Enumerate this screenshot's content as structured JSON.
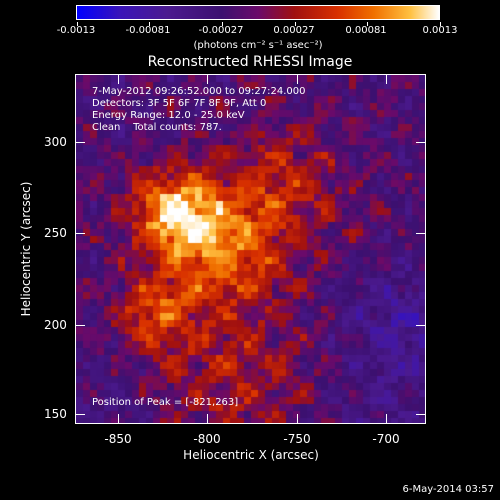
{
  "colorbar": {
    "ticks": [
      "-0.0013",
      "-0.00081",
      "-0.00027",
      "0.00027",
      "0.00081",
      "0.0013"
    ],
    "units": "(photons cm⁻² s⁻¹ asec⁻²)"
  },
  "chart_data": {
    "type": "heatmap",
    "title": "Reconstructed RHESSI Image",
    "xlabel": "Heliocentric X (arcsec)",
    "ylabel": "Heliocentric Y (arcsec)",
    "xlim": [
      -874,
      -677
    ],
    "ylim": [
      145,
      341
    ],
    "x_ticks": [
      "-850",
      "-800",
      "-750",
      "-700"
    ],
    "y_ticks": [
      "150",
      "200",
      "250",
      "300"
    ],
    "colorbar_range": [
      -0.0013,
      0.0013
    ],
    "peak": [
      -821,
      263
    ],
    "annotations": [
      "7-May-2012 09:26:52.000 to 09:27:24.000",
      "Detectors: 3F 5F 6F 7F 8F 9F, Att 0",
      "Energy Range: 12.0 - 25.0 keV",
      "Clean    Total counts: 787.",
      "Position of Peak = [-821,263]"
    ]
  },
  "footer": {
    "date": "6-May-2014 03:57"
  }
}
